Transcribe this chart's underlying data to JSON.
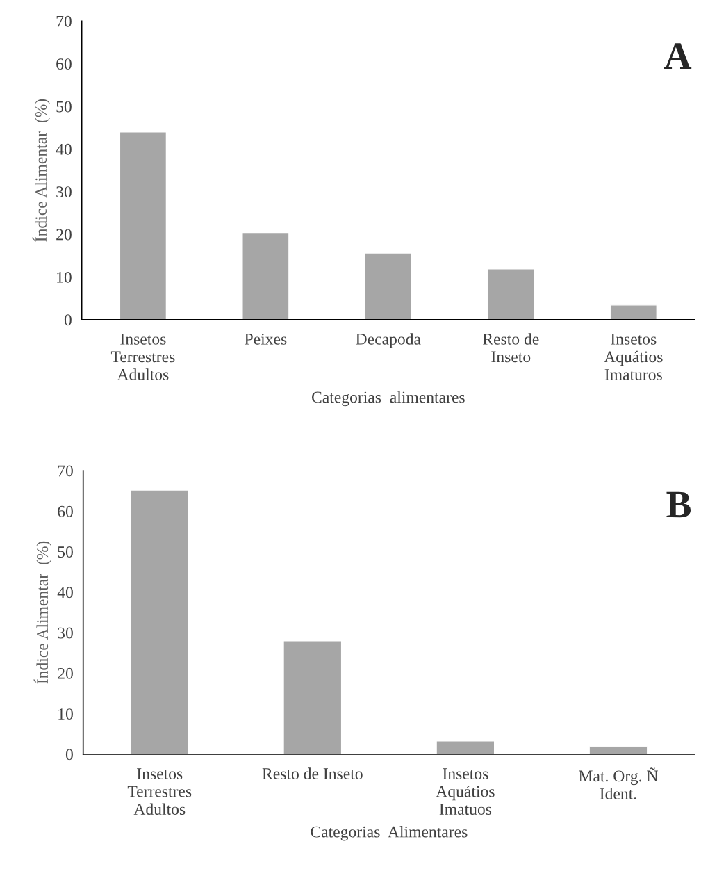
{
  "chart_data": [
    {
      "type": "bar",
      "categories": [
        "Insetos\nTerrestres\nAdultos",
        "Peixes",
        "Decapoda",
        "Resto de\nInseto",
        "Insetos\nAquátios\nImaturos"
      ],
      "values": [
        44,
        20.4,
        15.6,
        11.9,
        3.4
      ],
      "color": "#a6a6a6",
      "xlabel": "Categorias  alimentares",
      "ylabel": "Índice Alimentar  (%)",
      "ylim": [
        0,
        70
      ],
      "yticks": [
        0,
        10,
        20,
        30,
        40,
        50,
        60,
        70
      ],
      "annotations": [
        "A"
      ],
      "grid": false
    },
    {
      "type": "bar",
      "categories": [
        "Insetos\nTerrestres\nAdultos",
        "Resto de Inseto",
        "Insetos\nAquátios\nImatuos",
        "Mat. Org. Ñ\nIdent."
      ],
      "values": [
        65.2,
        28,
        3.3,
        1.9
      ],
      "color": "#a6a6a6",
      "xlabel": "Categorias  Alimentares",
      "ylabel": "Índice Alimentar  (%)",
      "ylim": [
        0,
        70
      ],
      "yticks": [
        0,
        10,
        20,
        30,
        40,
        50,
        60,
        70
      ],
      "annotations": [
        "B"
      ],
      "grid": false
    }
  ]
}
